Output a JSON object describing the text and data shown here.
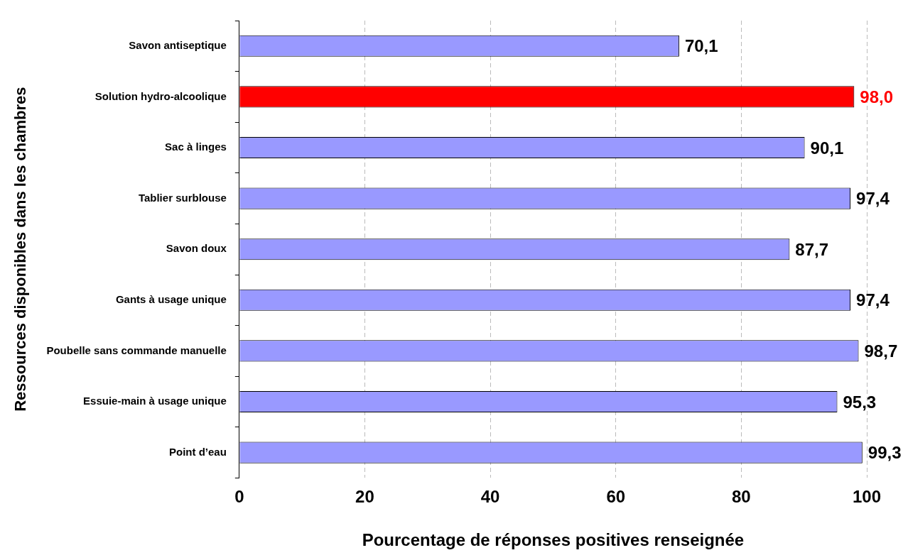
{
  "chart_data": {
    "type": "bar",
    "orientation": "horizontal",
    "xlabel": "Pourcentage de réponses positives renseignée",
    "ylabel": "Ressources disponibles dans les chambres",
    "categories": [
      "Savon antiseptique",
      "Solution hydro-alcoolique",
      "Sac à linges",
      "Tablier surblouse",
      "Savon doux",
      "Gants à usage unique",
      "Poubelle sans commande manuelle",
      "Essuie-main à usage unique",
      "Point d’eau"
    ],
    "values": [
      70.1,
      98.0,
      90.1,
      97.4,
      87.7,
      97.4,
      98.7,
      95.3,
      99.3
    ],
    "value_labels": [
      "70,1",
      "98,0",
      "90,1",
      "97,4",
      "87,7",
      "97,4",
      "98,7",
      "95,3",
      "99,3"
    ],
    "colors": [
      "#9999ff",
      "#ff0000",
      "#9999ff",
      "#9999ff",
      "#9999ff",
      "#9999ff",
      "#9999ff",
      "#9999ff",
      "#9999ff"
    ],
    "xlim": [
      0,
      100
    ],
    "xticks": [
      0,
      20,
      40,
      60,
      80,
      100
    ],
    "grid": "x",
    "legend": false
  }
}
